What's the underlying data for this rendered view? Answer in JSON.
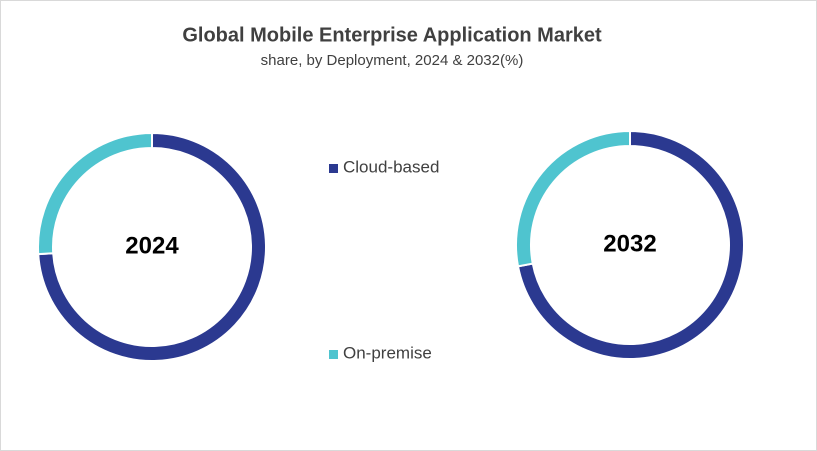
{
  "title": "Global Mobile Enterprise Application Market",
  "subtitle": "share, by Deployment, 2024 & 2032(%)",
  "chart_data": [
    {
      "type": "donut",
      "center_label": "2024",
      "categories": [
        "Cloud-based",
        "On-premise"
      ],
      "values": [
        74,
        26
      ],
      "colors": [
        "#2b3990",
        "#4fc4cf"
      ]
    },
    {
      "type": "donut",
      "center_label": "2032",
      "categories": [
        "Cloud-based",
        "On-premise"
      ],
      "values": [
        72,
        28
      ],
      "colors": [
        "#2b3990",
        "#4fc4cf"
      ]
    }
  ]
}
